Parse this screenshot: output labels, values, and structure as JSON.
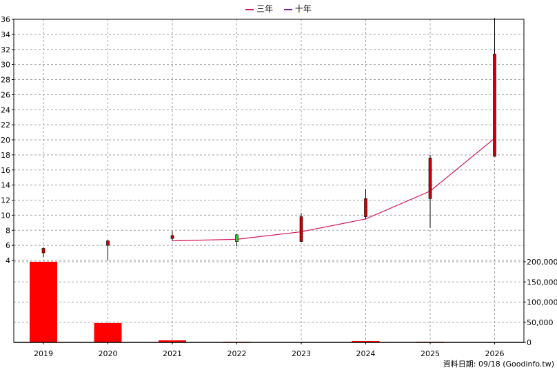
{
  "legend": [
    {
      "name": "三年",
      "color": "#d4145a"
    },
    {
      "name": "十年",
      "color": "#7b1fa2"
    }
  ],
  "footer": {
    "text": "資料日期: 09/18  (Goodinfo.tw)"
  },
  "chart_data": {
    "type": "candlestick+line+bar",
    "price_axis": {
      "min": 4,
      "max": 36,
      "ticks": [
        4,
        6,
        8,
        10,
        12,
        14,
        16,
        18,
        20,
        22,
        24,
        26,
        28,
        30,
        32,
        34,
        36
      ]
    },
    "volume_axis": {
      "min": 0,
      "max": 200000,
      "ticks": [
        0,
        50000,
        100000,
        150000,
        200000
      ],
      "tick_labels": [
        "0",
        "50,000",
        "100,000",
        "150,000",
        "200,000"
      ]
    },
    "categories": [
      "2019",
      "2020",
      "2021",
      "2022",
      "2023",
      "2024",
      "2025",
      "2026"
    ],
    "candles": [
      {
        "year": "2019",
        "open": 5.6,
        "close": 5.0,
        "high": 5.7,
        "low": 4.4,
        "color": "red"
      },
      {
        "year": "2020",
        "open": 6.6,
        "close": 6.0,
        "high": 6.7,
        "low": 4.0,
        "color": "red"
      },
      {
        "year": "2021",
        "open": 7.3,
        "close": 6.9,
        "high": 7.9,
        "low": 6.6,
        "color": "red"
      },
      {
        "year": "2022",
        "open": 6.5,
        "close": 7.4,
        "high": 7.5,
        "low": 5.9,
        "color": "green"
      },
      {
        "year": "2023",
        "open": 9.8,
        "close": 6.5,
        "high": 10.3,
        "low": 6.5,
        "color": "red"
      },
      {
        "year": "2024",
        "open": 12.2,
        "close": 9.8,
        "high": 13.5,
        "low": 9.5,
        "color": "red"
      },
      {
        "year": "2025",
        "open": 17.6,
        "close": 12.2,
        "high": 18.0,
        "low": 8.3,
        "color": "red"
      },
      {
        "year": "2026",
        "open": 31.4,
        "close": 17.8,
        "high": 36.2,
        "low": 17.8,
        "color": "red"
      }
    ],
    "series": [
      {
        "name": "三年",
        "color": "#d4145a",
        "x": [
          "2021",
          "2022",
          "2023",
          "2024",
          "2025",
          "2026"
        ],
        "values": [
          6.6,
          6.8,
          7.8,
          9.5,
          13.2,
          20.2
        ]
      }
    ],
    "volume": {
      "color": "#ff0000",
      "x": [
        "2019",
        "2020",
        "2021",
        "2022",
        "2023",
        "2024",
        "2025",
        "2026"
      ],
      "values": [
        200000,
        48000,
        5000,
        800,
        0,
        3500,
        600,
        0
      ]
    },
    "grid": true,
    "legend_position": "top-center"
  }
}
